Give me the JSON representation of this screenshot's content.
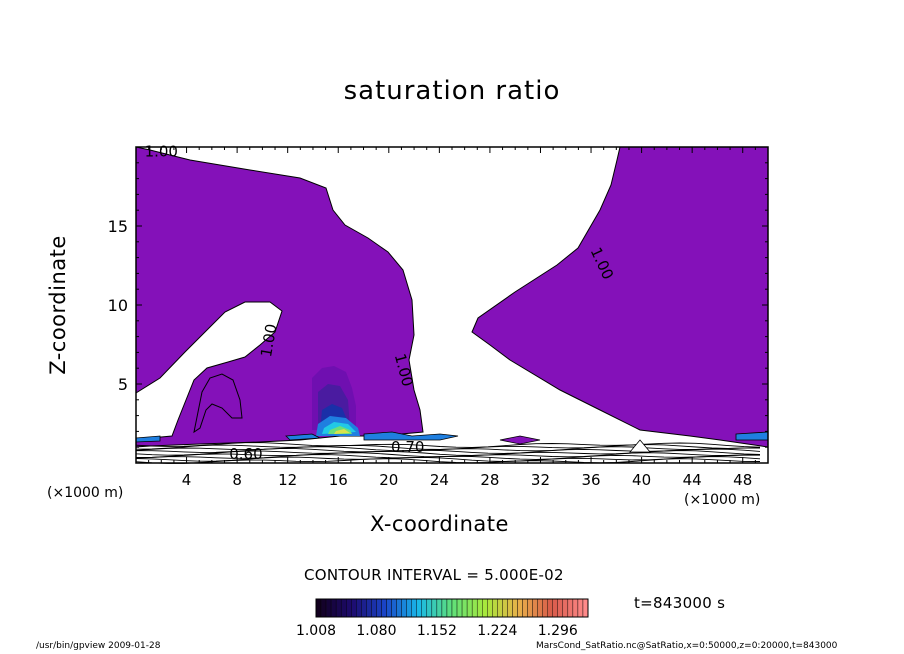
{
  "chart_data": {
    "type": "contour",
    "title": "saturation ratio",
    "xlabel": "X-coordinate",
    "ylabel": "Z-coordinate",
    "x_unit": "(×1000 m)",
    "y_unit": "(×1000 m)",
    "xlim": [
      0,
      50
    ],
    "ylim": [
      0,
      20
    ],
    "x_ticks": [
      4,
      8,
      12,
      16,
      20,
      24,
      28,
      32,
      36,
      40,
      44,
      48
    ],
    "y_ticks": [
      5,
      10,
      15
    ],
    "contour_interval": "CONTOUR INTERVAL = 5.000E-02",
    "contour_labels": [
      {
        "text": "1.00",
        "x": 2.0,
        "y": 19.4,
        "angle": 0
      },
      {
        "text": "1.00",
        "x": 10.9,
        "y": 7.7,
        "angle": -80
      },
      {
        "text": "1.00",
        "x": 20.8,
        "y": 5.8,
        "angle": 75
      },
      {
        "text": "1.00",
        "x": 36.5,
        "y": 12.5,
        "angle": 65
      },
      {
        "text": "0.60",
        "x": 8.7,
        "y": 0.25,
        "angle": 0
      },
      {
        "text": "0.70",
        "x": 21.5,
        "y": 0.7,
        "angle": 0
      }
    ],
    "colorbar": {
      "ticks": [
        "1.008",
        "1.080",
        "1.152",
        "1.224",
        "1.296"
      ],
      "min": 1.008,
      "max": 1.332,
      "n_bins": 54,
      "colormap": [
        "#12001f",
        "#1d0b6e",
        "#1a45c8",
        "#19b8e8",
        "#5fe07a",
        "#a8e83c",
        "#e8b04a",
        "#d85a4a",
        "#ff8a8a"
      ]
    },
    "fill_color": "#8411b9",
    "time_label": "t=843000 s"
  },
  "footer": {
    "left": "/usr/bin/gpview  2009-01-28",
    "right": "MarsCond_SatRatio.nc@SatRatio,x=0:50000,z=0:20000,t=843000"
  }
}
